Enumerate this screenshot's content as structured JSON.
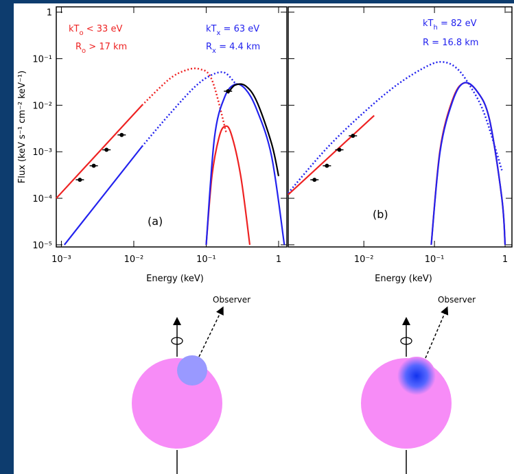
{
  "chart_data": [
    {
      "type": "line",
      "log_x": true,
      "log_y": true,
      "x_label": "Energy (keV)",
      "y_label": "Flux (keV s⁻¹ cm⁻² keV⁻¹)",
      "panel_label": "(a)",
      "observer_label": "Observer",
      "xlim": [
        0.00085,
        1.3
      ],
      "ylim": [
        9e-06,
        1.3
      ],
      "xticks": [
        {
          "value": 0.001,
          "label": "10⁻³"
        },
        {
          "value": 0.01,
          "label": "10⁻²"
        },
        {
          "value": 0.1,
          "label": "10⁻¹"
        },
        1
      ],
      "yticks": [
        {
          "value": 1e-05,
          "label": "10⁻⁵"
        },
        {
          "value": 0.0001,
          "label": "10⁻⁴"
        },
        {
          "value": 0.001,
          "label": "10⁻³"
        },
        {
          "value": 0.01,
          "label": "10⁻²"
        },
        {
          "value": 0.1,
          "label": "10⁻¹"
        },
        1
      ],
      "annotations": [
        {
          "main": "kT",
          "sub": "o",
          "rest": "  < 33 eV",
          "color": "#ee2222"
        },
        {
          "main": "R",
          "sub": "o",
          "rest": "  > 17 km",
          "color": "#ee2222"
        },
        {
          "main": "kT",
          "sub": "x",
          "rest": " = 63 eV",
          "color": "#2222ee"
        },
        {
          "main": "R",
          "sub": "x",
          "rest": "  = 4.4 km",
          "color": "#2222ee"
        }
      ],
      "series": [
        {
          "color": "#ee2222",
          "style": "solid",
          "x": [
            0.00085,
            0.013
          ],
          "values": [
            0.0001,
            0.01
          ]
        },
        {
          "color": "#ee2222",
          "style": "dotted",
          "x": [
            0.013,
            0.03,
            0.05,
            0.08,
            0.12,
            0.19
          ],
          "values": [
            0.01,
            0.035,
            0.055,
            0.06,
            0.035,
            0.0025
          ]
        },
        {
          "color": "#ee2222",
          "style": "solid",
          "x": [
            0.1,
            0.12,
            0.15,
            0.18,
            0.22,
            0.3,
            0.4
          ],
          "values": [
            1e-05,
            0.0003,
            0.002,
            0.0035,
            0.0025,
            0.0003,
            1e-05
          ]
        },
        {
          "color": "#2222ee",
          "style": "solid",
          "x": [
            0.0011,
            0.013
          ],
          "values": [
            1e-05,
            0.0013
          ]
        },
        {
          "color": "#2222ee",
          "style": "dotted",
          "x": [
            0.013,
            0.03,
            0.07,
            0.12,
            0.18,
            0.25
          ],
          "values": [
            0.0013,
            0.006,
            0.025,
            0.045,
            0.05,
            0.03
          ]
        },
        {
          "color": "#2222ee",
          "style": "solid",
          "x": [
            0.1,
            0.13,
            0.18,
            0.25,
            0.35,
            0.5,
            0.8,
            1.2
          ],
          "values": [
            1e-05,
            0.002,
            0.015,
            0.028,
            0.022,
            0.008,
            0.0008,
            1e-05
          ]
        },
        {
          "color": "#000000",
          "style": "solid",
          "x": [
            0.2,
            0.25,
            0.35,
            0.5,
            0.8,
            1.0
          ],
          "values": [
            0.018,
            0.027,
            0.026,
            0.012,
            0.0015,
            0.0003
          ]
        },
        {
          "color": "#000000",
          "style": "points",
          "x": [
            0.0018,
            0.0028,
            0.0042,
            0.0068,
            0.2
          ],
          "values": [
            0.00025,
            0.0005,
            0.0011,
            0.0023,
            0.02
          ]
        }
      ]
    },
    {
      "type": "line",
      "log_x": true,
      "log_y": true,
      "x_label": "Energy (keV)",
      "panel_label": "(b)",
      "observer_label": "Observer",
      "xlim": [
        0.00085,
        1.25
      ],
      "ylim": [
        9e-06,
        1.3
      ],
      "xticks": [
        {
          "value": 0.01,
          "label": "10⁻²"
        },
        {
          "value": 0.1,
          "label": "10⁻¹"
        },
        1
      ],
      "annotations": [
        {
          "main": "kT",
          "sub": "h",
          "rest": " = 82 eV",
          "color": "#2222ee"
        },
        {
          "main": "R",
          "sub": "",
          "rest": "   = 16.8 km",
          "color": "#2222ee"
        }
      ],
      "series": [
        {
          "color": "#2222ee",
          "style": "dotted",
          "x": [
            0.00085,
            0.003,
            0.01,
            0.03,
            0.08,
            0.13,
            0.2,
            0.3,
            0.5,
            0.9
          ],
          "values": [
            0.00013,
            0.0012,
            0.007,
            0.028,
            0.07,
            0.085,
            0.065,
            0.03,
            0.007,
            0.0004
          ]
        },
        {
          "color": "#ee2222",
          "style": "solid",
          "x": [
            0.00085,
            0.014
          ],
          "values": [
            0.00012,
            0.006
          ]
        },
        {
          "color": "#ee2222",
          "style": "solid",
          "x": [
            0.09,
            0.12,
            0.18,
            0.26,
            0.4,
            0.6,
            0.9,
            1.0
          ],
          "values": [
            1e-05,
            0.0011,
            0.013,
            0.03,
            0.02,
            0.005,
            0.0001,
            1e-05
          ]
        },
        {
          "color": "#2222ee",
          "style": "solid",
          "x": [
            0.09,
            0.12,
            0.18,
            0.26,
            0.4,
            0.6,
            0.9,
            1.0
          ],
          "values": [
            1e-05,
            0.001,
            0.012,
            0.03,
            0.02,
            0.005,
            0.0001,
            1e-05
          ]
        },
        {
          "color": "#000000",
          "style": "points",
          "x": [
            0.002,
            0.003,
            0.0045,
            0.007
          ],
          "values": [
            0.00025,
            0.0005,
            0.0011,
            0.0022
          ]
        }
      ]
    }
  ]
}
